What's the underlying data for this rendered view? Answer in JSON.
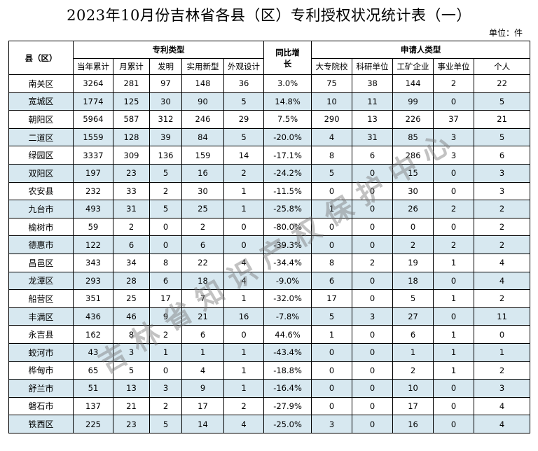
{
  "title": "2023年10月份吉林省各县（区）专利授权状况统计表（一）",
  "unit": "单位：件",
  "headers": {
    "county": "县（区）",
    "patent_type": "专利类型",
    "growth": "同比增长",
    "applicant_type": "申请人类型",
    "sub": [
      "当年累计",
      "月累计",
      "发明",
      "实用新型",
      "外观设计",
      "大专院校",
      "科研单位",
      "工矿企业",
      "事业单位",
      "个人"
    ]
  },
  "rows": [
    {
      "name": "南关区",
      "year": "3264",
      "month": "281",
      "inv": "97",
      "util": "148",
      "design": "36",
      "growth": "3.0%",
      "univ": "75",
      "research": "38",
      "industry": "144",
      "inst": "2",
      "person": "22"
    },
    {
      "name": "宽城区",
      "year": "1774",
      "month": "125",
      "inv": "30",
      "util": "90",
      "design": "5",
      "growth": "14.8%",
      "univ": "10",
      "research": "11",
      "industry": "99",
      "inst": "0",
      "person": "5"
    },
    {
      "name": "朝阳区",
      "year": "5964",
      "month": "587",
      "inv": "312",
      "util": "246",
      "design": "29",
      "growth": "7.5%",
      "univ": "290",
      "research": "13",
      "industry": "226",
      "inst": "37",
      "person": "21"
    },
    {
      "name": "二道区",
      "year": "1559",
      "month": "128",
      "inv": "39",
      "util": "84",
      "design": "5",
      "growth": "-20.0%",
      "univ": "4",
      "research": "31",
      "industry": "85",
      "inst": "3",
      "person": "5"
    },
    {
      "name": "绿园区",
      "year": "3337",
      "month": "309",
      "inv": "136",
      "util": "159",
      "design": "14",
      "growth": "-17.1%",
      "univ": "8",
      "research": "6",
      "industry": "286",
      "inst": "3",
      "person": "6"
    },
    {
      "name": "双阳区",
      "year": "197",
      "month": "23",
      "inv": "5",
      "util": "16",
      "design": "2",
      "growth": "-24.2%",
      "univ": "5",
      "research": "0",
      "industry": "15",
      "inst": "0",
      "person": "3"
    },
    {
      "name": "农安县",
      "year": "232",
      "month": "33",
      "inv": "2",
      "util": "30",
      "design": "1",
      "growth": "-11.5%",
      "univ": "0",
      "research": "0",
      "industry": "30",
      "inst": "0",
      "person": "3"
    },
    {
      "name": "九台市",
      "year": "493",
      "month": "31",
      "inv": "5",
      "util": "25",
      "design": "1",
      "growth": "-25.8%",
      "univ": "1",
      "research": "0",
      "industry": "26",
      "inst": "2",
      "person": "2"
    },
    {
      "name": "榆树市",
      "year": "59",
      "month": "2",
      "inv": "0",
      "util": "2",
      "design": "0",
      "growth": "-80.0%",
      "univ": "0",
      "research": "0",
      "industry": "0",
      "inst": "0",
      "person": "2"
    },
    {
      "name": "德惠市",
      "year": "122",
      "month": "6",
      "inv": "0",
      "util": "6",
      "design": "0",
      "growth": "-39.3%",
      "univ": "0",
      "research": "0",
      "industry": "2",
      "inst": "2",
      "person": "2"
    },
    {
      "name": "昌邑区",
      "year": "343",
      "month": "34",
      "inv": "8",
      "util": "22",
      "design": "4",
      "growth": "-34.4%",
      "univ": "8",
      "research": "2",
      "industry": "19",
      "inst": "1",
      "person": "4"
    },
    {
      "name": "龙潭区",
      "year": "293",
      "month": "28",
      "inv": "6",
      "util": "18",
      "design": "4",
      "growth": "-9.0%",
      "univ": "6",
      "research": "0",
      "industry": "18",
      "inst": "0",
      "person": "4"
    },
    {
      "name": "船营区",
      "year": "351",
      "month": "25",
      "inv": "17",
      "util": "7",
      "design": "1",
      "growth": "-32.0%",
      "univ": "17",
      "research": "0",
      "industry": "5",
      "inst": "1",
      "person": "2"
    },
    {
      "name": "丰满区",
      "year": "436",
      "month": "46",
      "inv": "9",
      "util": "21",
      "design": "16",
      "growth": "-7.8%",
      "univ": "5",
      "research": "3",
      "industry": "27",
      "inst": "0",
      "person": "11"
    },
    {
      "name": "永吉县",
      "year": "162",
      "month": "8",
      "inv": "2",
      "util": "6",
      "design": "0",
      "growth": "44.6%",
      "univ": "1",
      "research": "0",
      "industry": "6",
      "inst": "1",
      "person": "0"
    },
    {
      "name": "蛟河市",
      "year": "43",
      "month": "3",
      "inv": "1",
      "util": "1",
      "design": "1",
      "growth": "-43.4%",
      "univ": "0",
      "research": "0",
      "industry": "1",
      "inst": "1",
      "person": "1"
    },
    {
      "name": "桦甸市",
      "year": "65",
      "month": "5",
      "inv": "0",
      "util": "4",
      "design": "1",
      "growth": "-18.8%",
      "univ": "0",
      "research": "0",
      "industry": "2",
      "inst": "1",
      "person": "2"
    },
    {
      "name": "舒兰市",
      "year": "51",
      "month": "13",
      "inv": "3",
      "util": "9",
      "design": "1",
      "growth": "-16.4%",
      "univ": "0",
      "research": "0",
      "industry": "10",
      "inst": "0",
      "person": "3"
    },
    {
      "name": "磐石市",
      "year": "137",
      "month": "21",
      "inv": "2",
      "util": "17",
      "design": "2",
      "growth": "-27.9%",
      "univ": "0",
      "research": "0",
      "industry": "17",
      "inst": "0",
      "person": "4"
    },
    {
      "name": "铁西区",
      "year": "225",
      "month": "23",
      "inv": "5",
      "util": "14",
      "design": "4",
      "growth": "-25.0%",
      "univ": "3",
      "research": "0",
      "industry": "16",
      "inst": "0",
      "person": "4"
    }
  ],
  "watermark": "吉林省知识产权保护中心"
}
